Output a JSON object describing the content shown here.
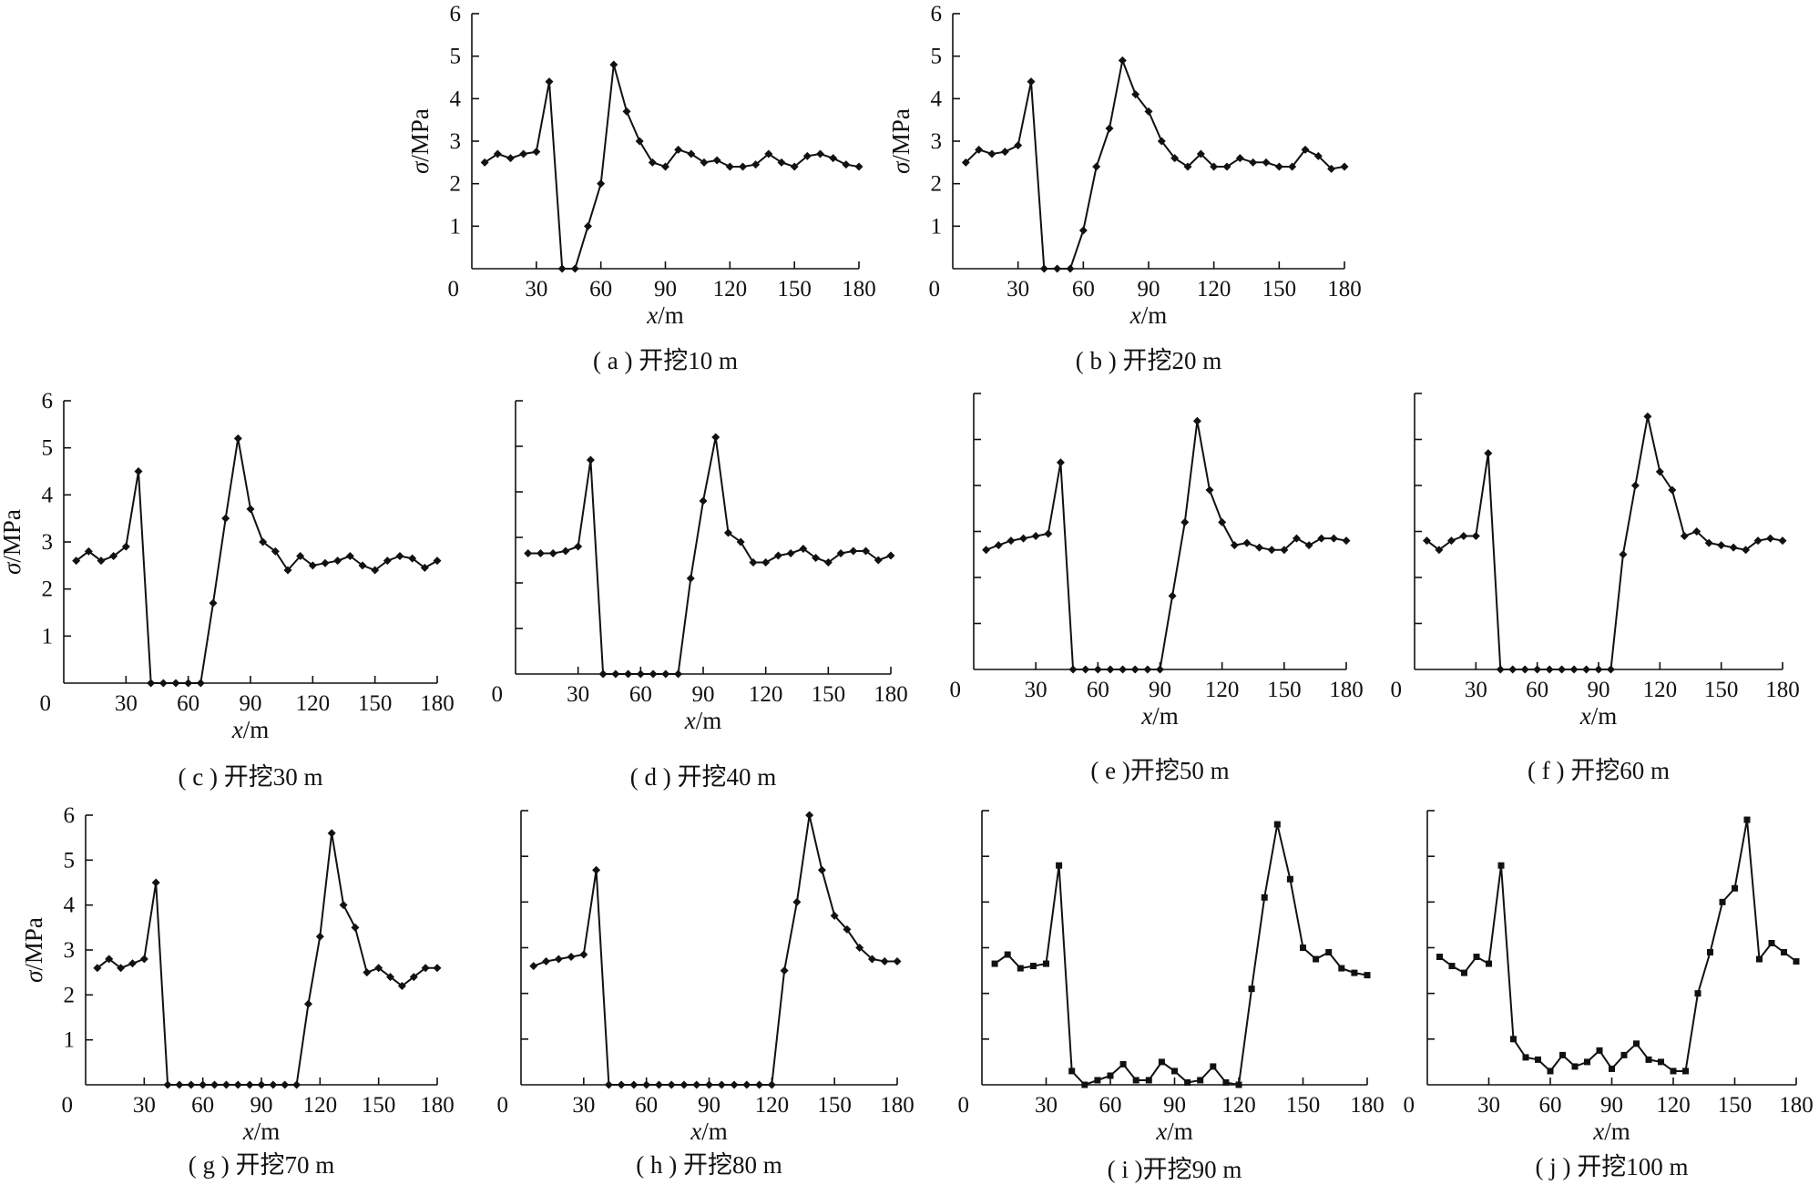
{
  "chart_data": [
    {
      "type": "line",
      "panel": "a",
      "caption": "( a ) 开挖10 m",
      "xlabel": "x/m",
      "ylabel": "σ/MPa",
      "xlim": [
        0,
        180
      ],
      "ylim": [
        0,
        6
      ],
      "xticks": [
        "0",
        "30",
        "60",
        "90",
        "120",
        "150",
        "180"
      ],
      "yticks": [
        "1",
        "2",
        "3",
        "4",
        "5",
        "6"
      ],
      "marker": "diamond",
      "x": [
        6,
        12,
        18,
        24,
        30,
        36,
        42,
        48,
        54,
        60,
        66,
        72,
        78,
        84,
        90,
        96,
        102,
        108,
        114,
        120,
        126,
        132,
        138,
        144,
        150,
        156,
        162,
        168,
        174,
        180
      ],
      "y": [
        2.5,
        2.7,
        2.6,
        2.7,
        2.75,
        4.4,
        0,
        0,
        1.0,
        2.0,
        4.8,
        3.7,
        3.0,
        2.5,
        2.4,
        2.8,
        2.7,
        2.5,
        2.55,
        2.4,
        2.4,
        2.45,
        2.7,
        2.5,
        2.4,
        2.65,
        2.7,
        2.6,
        2.45,
        2.4
      ]
    },
    {
      "type": "line",
      "panel": "b",
      "caption": "( b ) 开挖20 m",
      "xlabel": "x/m",
      "ylabel": "σ/MPa",
      "xlim": [
        0,
        180
      ],
      "ylim": [
        0,
        6
      ],
      "xticks": [
        "0",
        "30",
        "60",
        "90",
        "120",
        "150",
        "180"
      ],
      "yticks": [
        "1",
        "2",
        "3",
        "4",
        "5",
        "6"
      ],
      "marker": "diamond",
      "x": [
        6,
        12,
        18,
        24,
        30,
        36,
        42,
        48,
        54,
        60,
        66,
        72,
        78,
        84,
        90,
        96,
        102,
        108,
        114,
        120,
        126,
        132,
        138,
        144,
        150,
        156,
        162,
        168,
        174,
        180
      ],
      "y": [
        2.5,
        2.8,
        2.7,
        2.75,
        2.9,
        4.4,
        0,
        0,
        0,
        0.9,
        2.4,
        3.3,
        4.9,
        4.1,
        3.7,
        3.0,
        2.6,
        2.4,
        2.7,
        2.4,
        2.4,
        2.6,
        2.5,
        2.5,
        2.4,
        2.4,
        2.8,
        2.65,
        2.35,
        2.4
      ]
    },
    {
      "type": "line",
      "panel": "c",
      "caption": "( c ) 开挖30 m",
      "xlabel": "x/m",
      "ylabel": "σ/MPa",
      "xlim": [
        0,
        180
      ],
      "ylim": [
        0,
        6
      ],
      "xticks": [
        "0",
        "30",
        "60",
        "90",
        "120",
        "150",
        "180"
      ],
      "yticks": [
        "1",
        "2",
        "3",
        "4",
        "5",
        "6"
      ],
      "marker": "diamond",
      "x": [
        6,
        12,
        18,
        24,
        30,
        36,
        42,
        48,
        54,
        60,
        66,
        72,
        78,
        84,
        90,
        96,
        102,
        108,
        114,
        120,
        126,
        132,
        138,
        144,
        150,
        156,
        162,
        168,
        174,
        180
      ],
      "y": [
        2.6,
        2.8,
        2.6,
        2.7,
        2.9,
        4.5,
        0,
        0,
        0,
        0,
        0,
        1.7,
        3.5,
        5.2,
        3.7,
        3.0,
        2.8,
        2.4,
        2.7,
        2.5,
        2.55,
        2.6,
        2.7,
        2.5,
        2.4,
        2.6,
        2.7,
        2.65,
        2.45,
        2.6
      ]
    },
    {
      "type": "line",
      "panel": "d",
      "caption": "( d ) 开挖40 m",
      "xlabel": "x/m",
      "ylabel": "",
      "xlim": [
        0,
        180
      ],
      "ylim": [
        0,
        6
      ],
      "xticks": [
        "0",
        "30",
        "60",
        "90",
        "120",
        "150",
        "180"
      ],
      "yticks": [],
      "marker": "diamond",
      "x": [
        6,
        12,
        18,
        24,
        30,
        36,
        42,
        48,
        54,
        60,
        66,
        72,
        78,
        84,
        90,
        96,
        102,
        108,
        114,
        120,
        126,
        132,
        138,
        144,
        150,
        156,
        162,
        168,
        174,
        180
      ],
      "y": [
        2.65,
        2.65,
        2.65,
        2.7,
        2.8,
        4.7,
        0,
        0,
        0,
        0,
        0,
        0,
        0,
        2.1,
        3.8,
        5.2,
        3.1,
        2.9,
        2.45,
        2.45,
        2.6,
        2.65,
        2.75,
        2.55,
        2.45,
        2.65,
        2.7,
        2.7,
        2.5,
        2.6
      ]
    },
    {
      "type": "line",
      "panel": "e",
      "caption": "( e )开挖50 m",
      "xlabel": "x/m",
      "ylabel": "",
      "xlim": [
        0,
        180
      ],
      "ylim": [
        0,
        6
      ],
      "xticks": [
        "0",
        "30",
        "60",
        "90",
        "120",
        "150",
        "180"
      ],
      "yticks": [],
      "marker": "diamond",
      "x": [
        6,
        12,
        18,
        24,
        30,
        36,
        42,
        48,
        54,
        60,
        66,
        72,
        78,
        84,
        90,
        96,
        102,
        108,
        114,
        120,
        126,
        132,
        138,
        144,
        150,
        156,
        162,
        168,
        174,
        180
      ],
      "y": [
        2.6,
        2.7,
        2.8,
        2.85,
        2.9,
        2.95,
        4.5,
        0,
        0,
        0,
        0,
        0,
        0,
        0,
        0,
        1.6,
        3.2,
        5.4,
        3.9,
        3.2,
        2.7,
        2.75,
        2.65,
        2.6,
        2.6,
        2.85,
        2.7,
        2.85,
        2.85,
        2.8
      ]
    },
    {
      "type": "line",
      "panel": "f",
      "caption": "( f ) 开挖60 m",
      "xlabel": "x/m",
      "ylabel": "",
      "xlim": [
        0,
        180
      ],
      "ylim": [
        0,
        6
      ],
      "xticks": [
        "0",
        "30",
        "60",
        "90",
        "120",
        "150",
        "180"
      ],
      "yticks": [],
      "marker": "diamond",
      "x": [
        6,
        12,
        18,
        24,
        30,
        36,
        42,
        48,
        54,
        60,
        66,
        72,
        78,
        84,
        90,
        96,
        102,
        108,
        114,
        120,
        126,
        132,
        138,
        144,
        150,
        156,
        162,
        168,
        174,
        180
      ],
      "y": [
        2.8,
        2.6,
        2.8,
        2.9,
        2.9,
        4.7,
        0,
        0,
        0,
        0,
        0,
        0,
        0,
        0,
        0,
        0,
        2.5,
        4.0,
        5.5,
        4.3,
        3.9,
        2.9,
        3.0,
        2.75,
        2.7,
        2.65,
        2.6,
        2.8,
        2.85,
        2.8
      ]
    },
    {
      "type": "line",
      "panel": "g",
      "caption": "( g ) 开挖70 m",
      "xlabel": "x/m",
      "ylabel": "σ/MPa",
      "xlim": [
        0,
        180
      ],
      "ylim": [
        0,
        6
      ],
      "xticks": [
        "0",
        "30",
        "60",
        "90",
        "120",
        "150",
        "180"
      ],
      "yticks": [
        "1",
        "2",
        "3",
        "4",
        "5",
        "6"
      ],
      "marker": "diamond",
      "x": [
        6,
        12,
        18,
        24,
        30,
        36,
        42,
        48,
        54,
        60,
        66,
        72,
        78,
        84,
        90,
        96,
        102,
        108,
        114,
        120,
        126,
        132,
        138,
        144,
        150,
        156,
        162,
        168,
        174,
        180
      ],
      "y": [
        2.6,
        2.8,
        2.6,
        2.7,
        2.8,
        4.5,
        0,
        0,
        0,
        0,
        0,
        0,
        0,
        0,
        0,
        0,
        0,
        0,
        1.8,
        3.3,
        5.6,
        4.0,
        3.5,
        2.5,
        2.6,
        2.4,
        2.2,
        2.4,
        2.6,
        2.6
      ]
    },
    {
      "type": "line",
      "panel": "h",
      "caption": "( h ) 开挖80 m",
      "xlabel": "x/m",
      "ylabel": "",
      "xlim": [
        0,
        180
      ],
      "ylim": [
        0,
        6
      ],
      "xticks": [
        "0",
        "30",
        "60",
        "90",
        "120",
        "150",
        "180"
      ],
      "yticks": [],
      "marker": "diamond",
      "x": [
        6,
        12,
        18,
        24,
        30,
        36,
        42,
        48,
        54,
        60,
        66,
        72,
        78,
        84,
        90,
        96,
        102,
        108,
        114,
        120,
        126,
        132,
        138,
        144,
        150,
        156,
        162,
        168,
        174,
        180
      ],
      "y": [
        2.6,
        2.7,
        2.75,
        2.8,
        2.85,
        4.7,
        0,
        0,
        0,
        0,
        0,
        0,
        0,
        0,
        0,
        0,
        0,
        0,
        0,
        0,
        2.5,
        4.0,
        5.9,
        4.7,
        3.7,
        3.4,
        3.0,
        2.75,
        2.7,
        2.7
      ]
    },
    {
      "type": "line",
      "panel": "i",
      "caption": "( i )开挖90 m",
      "xlabel": "x/m",
      "ylabel": "",
      "xlim": [
        0,
        180
      ],
      "ylim": [
        0,
        6
      ],
      "xticks": [
        "0",
        "30",
        "60",
        "90",
        "120",
        "150",
        "180"
      ],
      "yticks": [],
      "marker": "square",
      "x": [
        6,
        12,
        18,
        24,
        30,
        36,
        42,
        48,
        54,
        60,
        66,
        72,
        78,
        84,
        90,
        96,
        102,
        108,
        114,
        120,
        126,
        132,
        138,
        144,
        150,
        156,
        162,
        168,
        174,
        180
      ],
      "y": [
        2.65,
        2.85,
        2.55,
        2.6,
        2.65,
        4.8,
        0.3,
        0,
        0.1,
        0.2,
        0.45,
        0.1,
        0.1,
        0.5,
        0.3,
        0.05,
        0.1,
        0.4,
        0.05,
        0,
        2.1,
        4.1,
        5.7,
        4.5,
        3.0,
        2.75,
        2.9,
        2.55,
        2.45,
        2.4
      ]
    },
    {
      "type": "line",
      "panel": "j",
      "caption": "( j ) 开挖100 m",
      "xlabel": "x/m",
      "ylabel": "",
      "xlim": [
        0,
        180
      ],
      "ylim": [
        0,
        6
      ],
      "xticks": [
        "0",
        "30",
        "60",
        "90",
        "120",
        "150",
        "180"
      ],
      "yticks": [],
      "marker": "square",
      "x": [
        6,
        12,
        18,
        24,
        30,
        36,
        42,
        48,
        54,
        60,
        66,
        72,
        78,
        84,
        90,
        96,
        102,
        108,
        114,
        120,
        126,
        132,
        138,
        144,
        150,
        156,
        162,
        168,
        174,
        180
      ],
      "y": [
        2.8,
        2.6,
        2.45,
        2.8,
        2.65,
        4.8,
        1.0,
        0.6,
        0.55,
        0.3,
        0.65,
        0.4,
        0.5,
        0.75,
        0.35,
        0.65,
        0.9,
        0.55,
        0.5,
        0.3,
        0.3,
        2.0,
        2.9,
        4.0,
        4.3,
        5.8,
        2.75,
        3.1,
        2.9,
        2.7
      ]
    }
  ]
}
